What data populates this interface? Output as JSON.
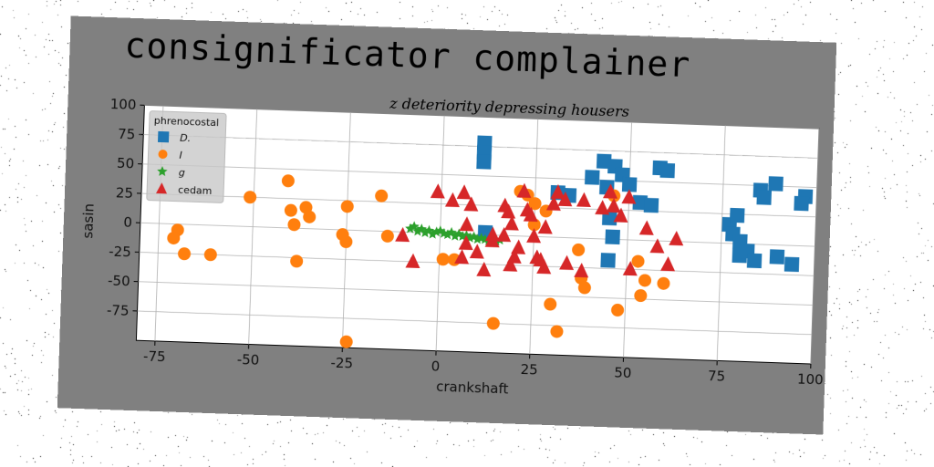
{
  "title": "consignificator complainer",
  "chart_data": {
    "type": "scatter",
    "title": "z deteriority depressing housers",
    "xlabel": "crankshaft",
    "ylabel": "sasin",
    "xlim": [
      -80,
      100
    ],
    "ylim": [
      -100,
      100
    ],
    "xticks": [
      -75,
      -50,
      -25,
      0,
      25,
      50,
      75,
      100
    ],
    "yticks": [
      -75,
      -50,
      -25,
      0,
      25,
      50,
      75,
      100
    ],
    "grid": true,
    "legend": {
      "title": "phrenocostal",
      "placement": "top-left"
    },
    "series": [
      {
        "name": "D.",
        "marker": "square",
        "color": "#1f77b4",
        "points": [
          [
            11,
            78
          ],
          [
            11,
            70
          ],
          [
            11,
            62
          ],
          [
            12,
            2
          ],
          [
            31,
            38
          ],
          [
            34,
            36
          ],
          [
            43,
            66
          ],
          [
            46,
            62
          ],
          [
            48,
            55
          ],
          [
            50,
            47
          ],
          [
            53,
            32
          ],
          [
            56,
            30
          ],
          [
            58,
            62
          ],
          [
            60,
            60
          ],
          [
            44,
            44
          ],
          [
            40,
            52
          ],
          [
            45,
            18
          ],
          [
            46,
            2
          ],
          [
            45,
            -18
          ],
          [
            77,
            16
          ],
          [
            78,
            8
          ],
          [
            79,
            24
          ],
          [
            80,
            2
          ],
          [
            80,
            -10
          ],
          [
            82,
            -6
          ],
          [
            84,
            -14
          ],
          [
            85,
            46
          ],
          [
            86,
            40
          ],
          [
            89,
            52
          ],
          [
            90,
            -10
          ],
          [
            94,
            -16
          ],
          [
            97,
            42
          ],
          [
            96,
            36
          ]
        ]
      },
      {
        "name": "I",
        "marker": "circle",
        "color": "#ff7f0e",
        "points": [
          [
            -70,
            -5
          ],
          [
            -71,
            -12
          ],
          [
            -68,
            -25
          ],
          [
            -61,
            -25
          ],
          [
            -51,
            25
          ],
          [
            -41,
            40
          ],
          [
            -40,
            15
          ],
          [
            -39,
            3
          ],
          [
            -38,
            -28
          ],
          [
            -36,
            18
          ],
          [
            -35,
            10
          ],
          [
            -25,
            20
          ],
          [
            -25,
            -10
          ],
          [
            -26,
            -4
          ],
          [
            -24,
            -95
          ],
          [
            -16,
            30
          ],
          [
            -14,
            -4
          ],
          [
            1,
            -22
          ],
          [
            4,
            -22
          ],
          [
            21,
            38
          ],
          [
            23,
            35
          ],
          [
            25,
            28
          ],
          [
            25,
            10
          ],
          [
            28,
            22
          ],
          [
            30,
            -57
          ],
          [
            32,
            -80
          ],
          [
            15,
            -75
          ],
          [
            38,
            -34
          ],
          [
            39,
            -42
          ],
          [
            37,
            -10
          ],
          [
            46,
            37
          ],
          [
            48,
            -60
          ],
          [
            54,
            -47
          ],
          [
            55,
            -34
          ],
          [
            53,
            -18
          ],
          [
            60,
            -36
          ]
        ]
      },
      {
        "name": "g",
        "marker": "star",
        "color": "#2ca02c",
        "points": [
          [
            -8,
            3
          ],
          [
            -7,
            5
          ],
          [
            -6,
            1
          ],
          [
            -5,
            3
          ],
          [
            -4,
            0
          ],
          [
            -3,
            2
          ],
          [
            -2,
            -1
          ],
          [
            -1,
            1
          ],
          [
            0,
            2
          ],
          [
            1,
            0
          ],
          [
            2,
            -1
          ],
          [
            3,
            1
          ],
          [
            4,
            -2
          ],
          [
            5,
            0
          ],
          [
            6,
            -2
          ],
          [
            7,
            -1
          ],
          [
            8,
            -3
          ],
          [
            9,
            -2
          ],
          [
            10,
            -4
          ],
          [
            11,
            -3
          ],
          [
            12,
            -4
          ],
          [
            13,
            -5
          ],
          [
            14,
            -3
          ],
          [
            15,
            -5
          ],
          [
            16,
            -4
          ]
        ]
      },
      {
        "name": "cedam",
        "marker": "triangle",
        "color": "#d62728",
        "points": [
          [
            -10,
            -3
          ],
          [
            -7,
            -25
          ],
          [
            -1,
            35
          ],
          [
            3,
            28
          ],
          [
            6,
            35
          ],
          [
            7,
            8
          ],
          [
            8,
            25
          ],
          [
            6,
            -20
          ],
          [
            10,
            -15
          ],
          [
            12,
            -30
          ],
          [
            14,
            -5
          ],
          [
            17,
            0
          ],
          [
            17,
            25
          ],
          [
            19,
            -25
          ],
          [
            20,
            -18
          ],
          [
            21,
            -10
          ],
          [
            22,
            38
          ],
          [
            23,
            22
          ],
          [
            24,
            18
          ],
          [
            25,
            0
          ],
          [
            27,
            -20
          ],
          [
            28,
            -26
          ],
          [
            30,
            28
          ],
          [
            31,
            38
          ],
          [
            33,
            32
          ],
          [
            34,
            -22
          ],
          [
            38,
            -28
          ],
          [
            38,
            32
          ],
          [
            43,
            26
          ],
          [
            45,
            40
          ],
          [
            46,
            28
          ],
          [
            48,
            20
          ],
          [
            50,
            36
          ],
          [
            51,
            -25
          ],
          [
            55,
            10
          ],
          [
            58,
            -5
          ],
          [
            61,
            -20
          ],
          [
            63,
            2
          ],
          [
            28,
            8
          ],
          [
            26,
            -18
          ],
          [
            18,
            20
          ],
          [
            19,
            10
          ],
          [
            14,
            0
          ],
          [
            7,
            -8
          ]
        ]
      }
    ]
  }
}
